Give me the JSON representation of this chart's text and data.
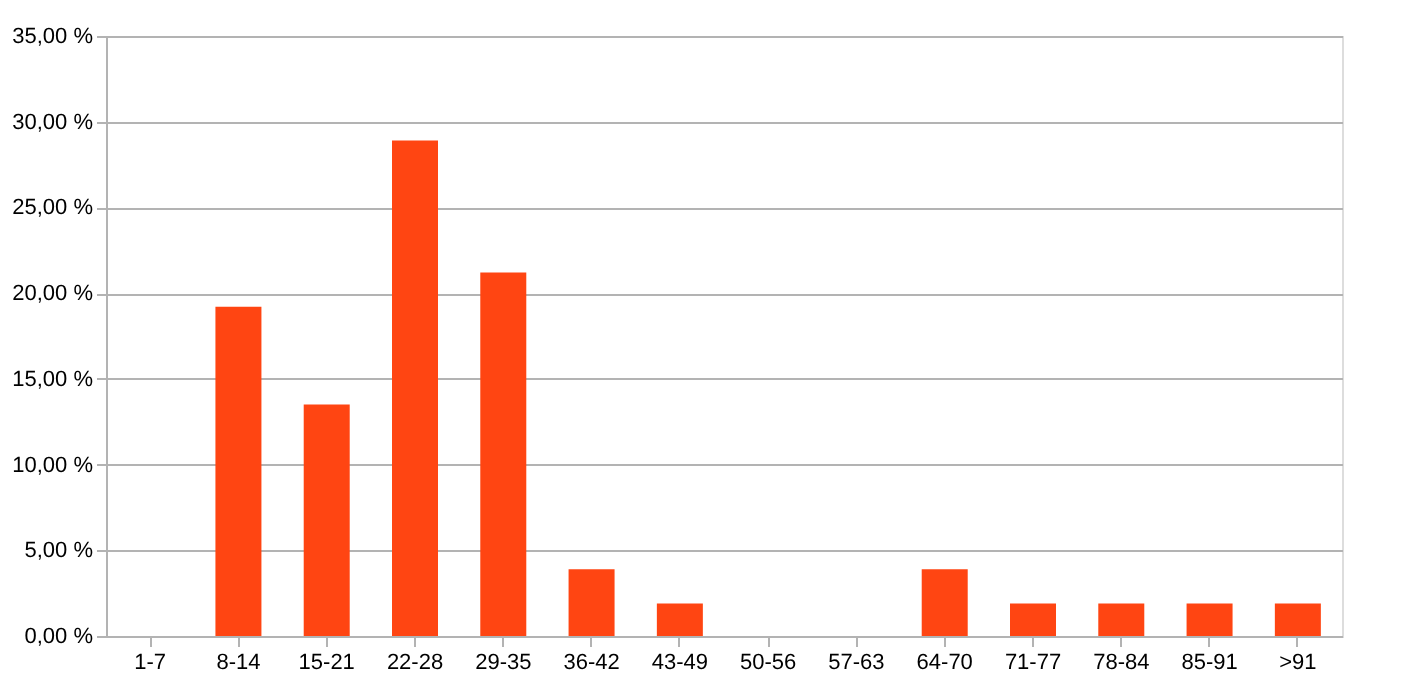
{
  "chart_data": {
    "type": "bar",
    "categories": [
      "1-7",
      "8-14",
      "15-21",
      "22-28",
      "29-35",
      "36-42",
      "43-49",
      "50-56",
      "57-63",
      "64-70",
      "71-77",
      "78-84",
      "85-91",
      ">91"
    ],
    "values": [
      0,
      19.2,
      13.5,
      28.9,
      21.2,
      3.9,
      1.9,
      0,
      0,
      3.9,
      1.9,
      1.9,
      1.9,
      1.9
    ],
    "color": "#ff4512",
    "ylim": [
      0,
      35
    ],
    "yticks": [
      {
        "value": 0,
        "label": "0,00 %"
      },
      {
        "value": 5,
        "label": "5,00 %"
      },
      {
        "value": 10,
        "label": "10,00 %"
      },
      {
        "value": 15,
        "label": "15,00 %"
      },
      {
        "value": 20,
        "label": "20,00 %"
      },
      {
        "value": 25,
        "label": "25,00 %"
      },
      {
        "value": 30,
        "label": "30,00 %"
      },
      {
        "value": 35,
        "label": "35,00 %"
      }
    ],
    "grid": "y"
  }
}
